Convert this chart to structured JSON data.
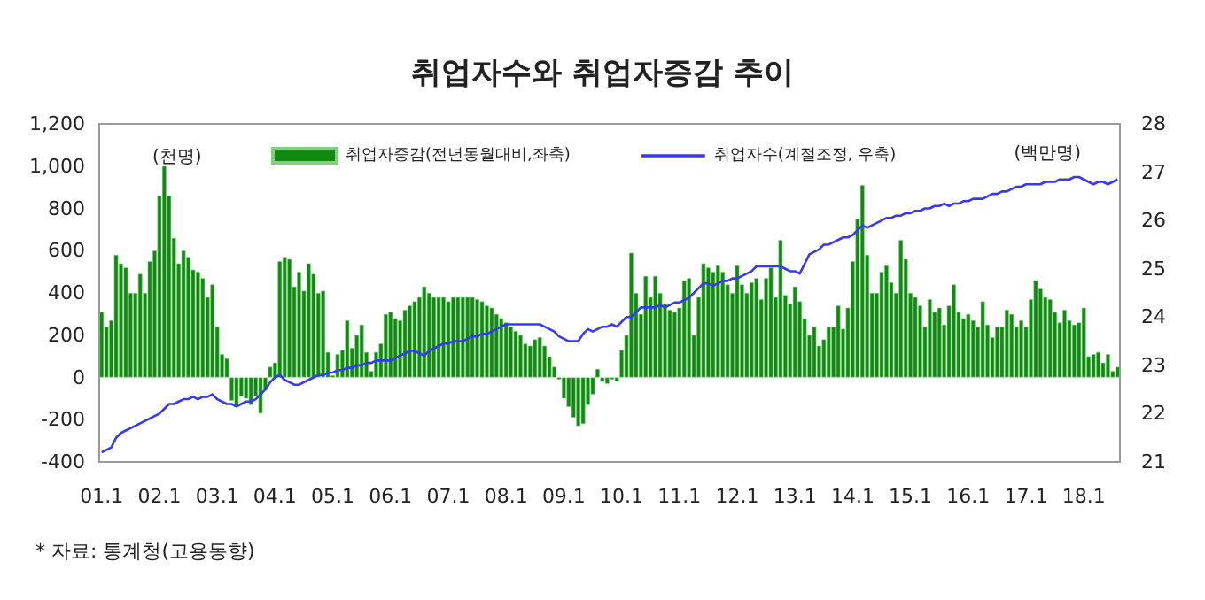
{
  "chart_data": {
    "type": "bar",
    "title": "취업자수와 취업자증감 추이",
    "categories": [
      "01.1",
      null,
      null,
      null,
      null,
      null,
      null,
      null,
      null,
      null,
      null,
      null,
      "02.1",
      null,
      null,
      null,
      null,
      null,
      null,
      null,
      null,
      null,
      null,
      null,
      "03.1",
      null,
      null,
      null,
      null,
      null,
      null,
      null,
      null,
      null,
      null,
      null,
      "04.1",
      null,
      null,
      null,
      null,
      null,
      null,
      null,
      null,
      null,
      null,
      null,
      "05.1",
      null,
      null,
      null,
      null,
      null,
      null,
      null,
      null,
      null,
      null,
      null,
      "06.1",
      null,
      null,
      null,
      null,
      null,
      null,
      null,
      null,
      null,
      null,
      null,
      "07.1",
      null,
      null,
      null,
      null,
      null,
      null,
      null,
      null,
      null,
      null,
      null,
      "08.1",
      null,
      null,
      null,
      null,
      null,
      null,
      null,
      null,
      null,
      null,
      null,
      "09.1",
      null,
      null,
      null,
      null,
      null,
      null,
      null,
      null,
      null,
      null,
      null,
      "10.1",
      null,
      null,
      null,
      null,
      null,
      null,
      null,
      null,
      null,
      null,
      null,
      "11.1",
      null,
      null,
      null,
      null,
      null,
      null,
      null,
      null,
      null,
      null,
      null,
      "12.1",
      null,
      null,
      null,
      null,
      null,
      null,
      null,
      null,
      null,
      null,
      null,
      "13.1",
      null,
      null,
      null,
      null,
      null,
      null,
      null,
      null,
      null,
      null,
      null,
      "14.1",
      null,
      null,
      null,
      null,
      null,
      null,
      null,
      null,
      null,
      null,
      null,
      "15.1",
      null,
      null,
      null,
      null,
      null,
      null,
      null,
      null,
      null,
      null,
      null,
      "16.1",
      null,
      null,
      null,
      null,
      null,
      null,
      null,
      null,
      null,
      null,
      null,
      "17.1",
      null,
      null,
      null,
      null,
      null,
      null,
      null,
      null,
      null,
      null,
      null,
      "18.1",
      null,
      null,
      null,
      null,
      null,
      null,
      null
    ],
    "series": [
      {
        "name": "취업자증감(전년동월대비,좌축)",
        "color": "#118a11",
        "values": [
          310,
          240,
          270,
          580,
          540,
          520,
          400,
          400,
          490,
          400,
          550,
          600,
          860,
          1000,
          860,
          660,
          540,
          600,
          570,
          510,
          500,
          470,
          380,
          440,
          240,
          110,
          90,
          -110,
          -140,
          -90,
          -100,
          -130,
          -90,
          -170,
          -60,
          50,
          70,
          550,
          570,
          560,
          430,
          500,
          410,
          540,
          490,
          400,
          410,
          120,
          10,
          110,
          130,
          270,
          140,
          200,
          250,
          120,
          30,
          120,
          160,
          300,
          310,
          280,
          270,
          320,
          340,
          360,
          380,
          430,
          400,
          380,
          380,
          380,
          360,
          380,
          380,
          380,
          380,
          380,
          370,
          360,
          340,
          330,
          300,
          280,
          260,
          240,
          220,
          200,
          160,
          150,
          180,
          190,
          150,
          100,
          50,
          -10,
          -100,
          -140,
          -190,
          -230,
          -220,
          -130,
          -80,
          40,
          -20,
          -30,
          -10,
          -20,
          130,
          200,
          590,
          400,
          300,
          480,
          380,
          480,
          400,
          350,
          320,
          310,
          330,
          460,
          470,
          200,
          380,
          540,
          520,
          500,
          530,
          500,
          440,
          400,
          530,
          440,
          400,
          450,
          470,
          370,
          470,
          520,
          380,
          650,
          390,
          350,
          430,
          360,
          280,
          200,
          240,
          150,
          180,
          240,
          240,
          340,
          230,
          330,
          550,
          750,
          910,
          580,
          400,
          400,
          500,
          530,
          450,
          400,
          650,
          560,
          400,
          380,
          340,
          240,
          370,
          310,
          330,
          250,
          340,
          440,
          310,
          280,
          300,
          270,
          240,
          360,
          250,
          190,
          240,
          240,
          320,
          300,
          240,
          270,
          240,
          370,
          460,
          420,
          380,
          370,
          310,
          260,
          320,
          270,
          250,
          260,
          330,
          100,
          110,
          120,
          70,
          110,
          30,
          50
        ]
      },
      {
        "name": "취업자수(계절조정, 우축)",
        "type": "line",
        "axis": "y2",
        "color": "#3838f0",
        "values": [
          21.2,
          21.25,
          21.3,
          21.5,
          21.6,
          21.65,
          21.7,
          21.75,
          21.8,
          21.85,
          21.9,
          21.95,
          22.0,
          22.1,
          22.2,
          22.2,
          22.25,
          22.3,
          22.3,
          22.35,
          22.3,
          22.35,
          22.35,
          22.4,
          22.3,
          22.25,
          22.2,
          22.2,
          22.15,
          22.2,
          22.25,
          22.25,
          22.3,
          22.4,
          22.5,
          22.65,
          22.75,
          22.8,
          22.7,
          22.65,
          22.6,
          22.6,
          22.65,
          22.7,
          22.75,
          22.8,
          22.8,
          22.85,
          22.85,
          22.9,
          22.9,
          22.95,
          22.95,
          23.0,
          23.0,
          23.05,
          23.05,
          23.1,
          23.1,
          23.1,
          23.1,
          23.15,
          23.2,
          23.25,
          23.3,
          23.3,
          23.25,
          23.2,
          23.3,
          23.35,
          23.4,
          23.45,
          23.45,
          23.5,
          23.5,
          23.5,
          23.55,
          23.6,
          23.6,
          23.65,
          23.65,
          23.7,
          23.75,
          23.8,
          23.85,
          23.85,
          23.85,
          23.85,
          23.85,
          23.85,
          23.85,
          23.85,
          23.8,
          23.75,
          23.7,
          23.6,
          23.55,
          23.5,
          23.5,
          23.5,
          23.65,
          23.75,
          23.7,
          23.75,
          23.8,
          23.8,
          23.85,
          23.8,
          23.9,
          24.0,
          24.0,
          24.1,
          24.2,
          24.2,
          24.2,
          24.2,
          24.25,
          24.2,
          24.25,
          24.3,
          24.3,
          24.35,
          24.4,
          24.5,
          24.6,
          24.7,
          24.7,
          24.65,
          24.7,
          24.75,
          24.75,
          24.8,
          24.8,
          24.85,
          24.9,
          24.95,
          25.05,
          25.05,
          25.05,
          25.05,
          25.05,
          25.05,
          25.0,
          24.95,
          24.95,
          24.9,
          25.1,
          25.3,
          25.35,
          25.4,
          25.5,
          25.5,
          25.55,
          25.6,
          25.65,
          25.65,
          25.7,
          25.8,
          25.9,
          25.85,
          25.9,
          25.95,
          26.0,
          26.05,
          26.05,
          26.1,
          26.1,
          26.15,
          26.15,
          26.2,
          26.2,
          26.25,
          26.25,
          26.3,
          26.3,
          26.35,
          26.3,
          26.35,
          26.35,
          26.4,
          26.4,
          26.45,
          26.45,
          26.45,
          26.5,
          26.55,
          26.55,
          26.6,
          26.6,
          26.65,
          26.7,
          26.7,
          26.75,
          26.75,
          26.75,
          26.75,
          26.8,
          26.8,
          26.8,
          26.85,
          26.85,
          26.85,
          26.9,
          26.9,
          26.85,
          26.8,
          26.75,
          26.8,
          26.8,
          26.75,
          26.8,
          26.85
        ]
      }
    ],
    "ylim": [
      -400,
      1200
    ],
    "yticks": [
      -400,
      -200,
      0,
      200,
      400,
      600,
      800,
      {
        "value": 1000,
        "label": "1,000"
      },
      {
        "value": 1200,
        "label": "1,200"
      }
    ],
    "y2lim": [
      21,
      28
    ],
    "y2ticks": [
      21,
      22,
      23,
      24,
      25,
      26,
      27,
      28
    ],
    "annotations": [
      "(천명)",
      "(백만명)",
      "* 자료: 통계청(고용동향)"
    ],
    "legend": "top",
    "grid": false,
    "marker": "none",
    "line_style": "solid"
  }
}
